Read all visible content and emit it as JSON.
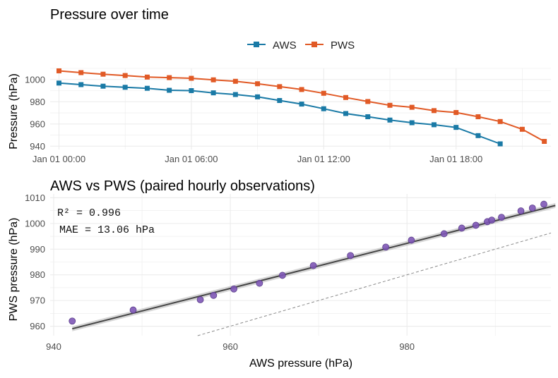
{
  "colors": {
    "aws": "#1a7aa6",
    "pws": "#e15a26",
    "scatter": "#7e57b6",
    "fit": "#444444",
    "band": "#bbbbbb",
    "grid": "#ebebeb"
  },
  "chart_data": [
    {
      "type": "line",
      "title": "Pressure over time",
      "xlabel": "",
      "ylabel": "Pressure (hPa)",
      "ylim": [
        937,
        1010
      ],
      "xlim": [
        -0.4,
        22.3
      ],
      "xticks": [
        0,
        6,
        12,
        18
      ],
      "xtick_labels": [
        "Jan 01 00:00",
        "Jan 01 06:00",
        "Jan 01 12:00",
        "Jan 01 18:00"
      ],
      "yticks": [
        940,
        960,
        980,
        1000
      ],
      "ytick_labels": [
        "940",
        "960",
        "980",
        "1000"
      ],
      "legend_position": "top",
      "series": [
        {
          "name": "AWS",
          "x": [
            0,
            1,
            2,
            3,
            4,
            5,
            6,
            7,
            8,
            9,
            10,
            11,
            12,
            13,
            14,
            15,
            16,
            17,
            18,
            19,
            20
          ],
          "values": [
            996.8,
            995.4,
            994.0,
            993.0,
            992.1,
            990.3,
            990.0,
            988.0,
            986.5,
            984.4,
            981.1,
            977.9,
            973.7,
            969.4,
            966.5,
            963.5,
            961.1,
            959.3,
            956.9,
            949.5,
            942.1
          ]
        },
        {
          "name": "PWS",
          "x": [
            0,
            1,
            2,
            3,
            4,
            5,
            6,
            7,
            8,
            9,
            10,
            11,
            12,
            13,
            14,
            15,
            16,
            17,
            18,
            19,
            20,
            21,
            22
          ],
          "values": [
            1007.8,
            1006.2,
            1004.8,
            1003.6,
            1002.2,
            1001.7,
            1001.1,
            999.7,
            998.4,
            996.2,
            993.6,
            991.0,
            987.6,
            983.8,
            980.2,
            976.8,
            975.0,
            972.0,
            970.3,
            966.5,
            962.2,
            955.2,
            944.3
          ]
        }
      ]
    },
    {
      "type": "scatter",
      "title": "AWS vs PWS (paired hourly observations)",
      "xlabel": "AWS pressure (hPa)",
      "ylabel": "PWS pressure (hPa)",
      "xlim": [
        939.6,
        996.3
      ],
      "ylim": [
        956.3,
        1011.5
      ],
      "xticks": [
        940,
        960,
        980
      ],
      "xtick_labels": [
        "940",
        "960",
        "980"
      ],
      "yticks": [
        960,
        970,
        980,
        990,
        1000,
        1010
      ],
      "ytick_labels": [
        "960",
        "970",
        "980",
        "990",
        "1000",
        "1010"
      ],
      "annotations": [
        "R² = 0.996",
        "MAE = 13.06 hPa"
      ],
      "fit_line": {
        "x": [
          942.1,
          996.8
        ],
        "y": [
          959.0,
          1007.0
        ]
      },
      "identity_line": true,
      "points": [
        {
          "x": 942.1,
          "y": 962.0
        },
        {
          "x": 949.0,
          "y": 966.3
        },
        {
          "x": 956.6,
          "y": 970.3
        },
        {
          "x": 958.1,
          "y": 972.0
        },
        {
          "x": 960.4,
          "y": 974.5
        },
        {
          "x": 963.3,
          "y": 976.7
        },
        {
          "x": 965.9,
          "y": 979.8
        },
        {
          "x": 969.4,
          "y": 983.6
        },
        {
          "x": 973.6,
          "y": 987.5
        },
        {
          "x": 977.6,
          "y": 990.8
        },
        {
          "x": 980.5,
          "y": 993.5
        },
        {
          "x": 984.2,
          "y": 996.0
        },
        {
          "x": 986.2,
          "y": 998.2
        },
        {
          "x": 987.8,
          "y": 999.3
        },
        {
          "x": 989.1,
          "y": 1000.7
        },
        {
          "x": 989.6,
          "y": 1001.3
        },
        {
          "x": 990.7,
          "y": 1002.4
        },
        {
          "x": 992.9,
          "y": 1004.9
        },
        {
          "x": 994.2,
          "y": 1006.0
        },
        {
          "x": 995.5,
          "y": 1007.5
        }
      ]
    }
  ]
}
